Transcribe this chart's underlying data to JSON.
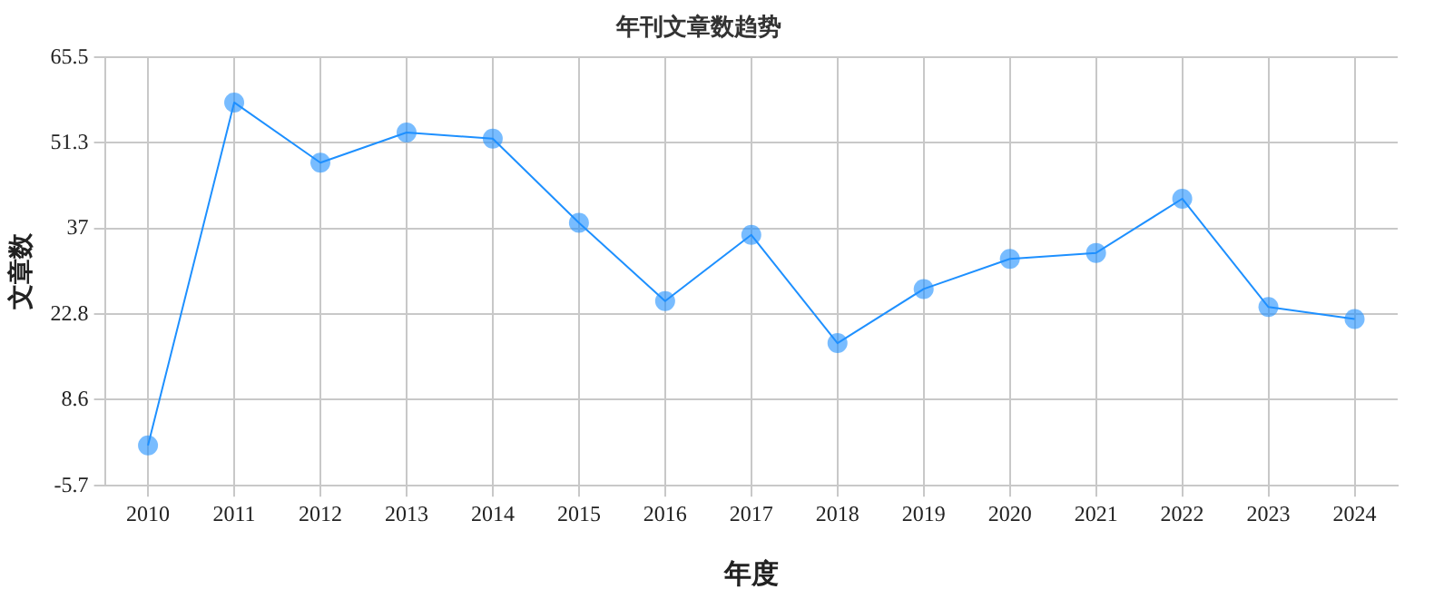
{
  "chart_data": {
    "type": "line",
    "title": "年刊文章数趋势",
    "xlabel": "年度",
    "ylabel": "文章数",
    "categories": [
      "2010",
      "2011",
      "2012",
      "2013",
      "2014",
      "2015",
      "2016",
      "2017",
      "2018",
      "2019",
      "2020",
      "2021",
      "2022",
      "2023",
      "2024"
    ],
    "series": [
      {
        "color": "#1e90ff",
        "values": [
          1,
          58,
          48,
          53,
          52,
          38,
          25,
          36,
          18,
          27,
          32,
          33,
          42,
          24,
          22
        ]
      }
    ],
    "ylim": [
      -5.7,
      65.5
    ],
    "yticks": [
      -5.7,
      8.6,
      22.8,
      37,
      51.3,
      65.5
    ],
    "grid": true,
    "legend": false,
    "marker": "circle",
    "line_style": "solid"
  }
}
